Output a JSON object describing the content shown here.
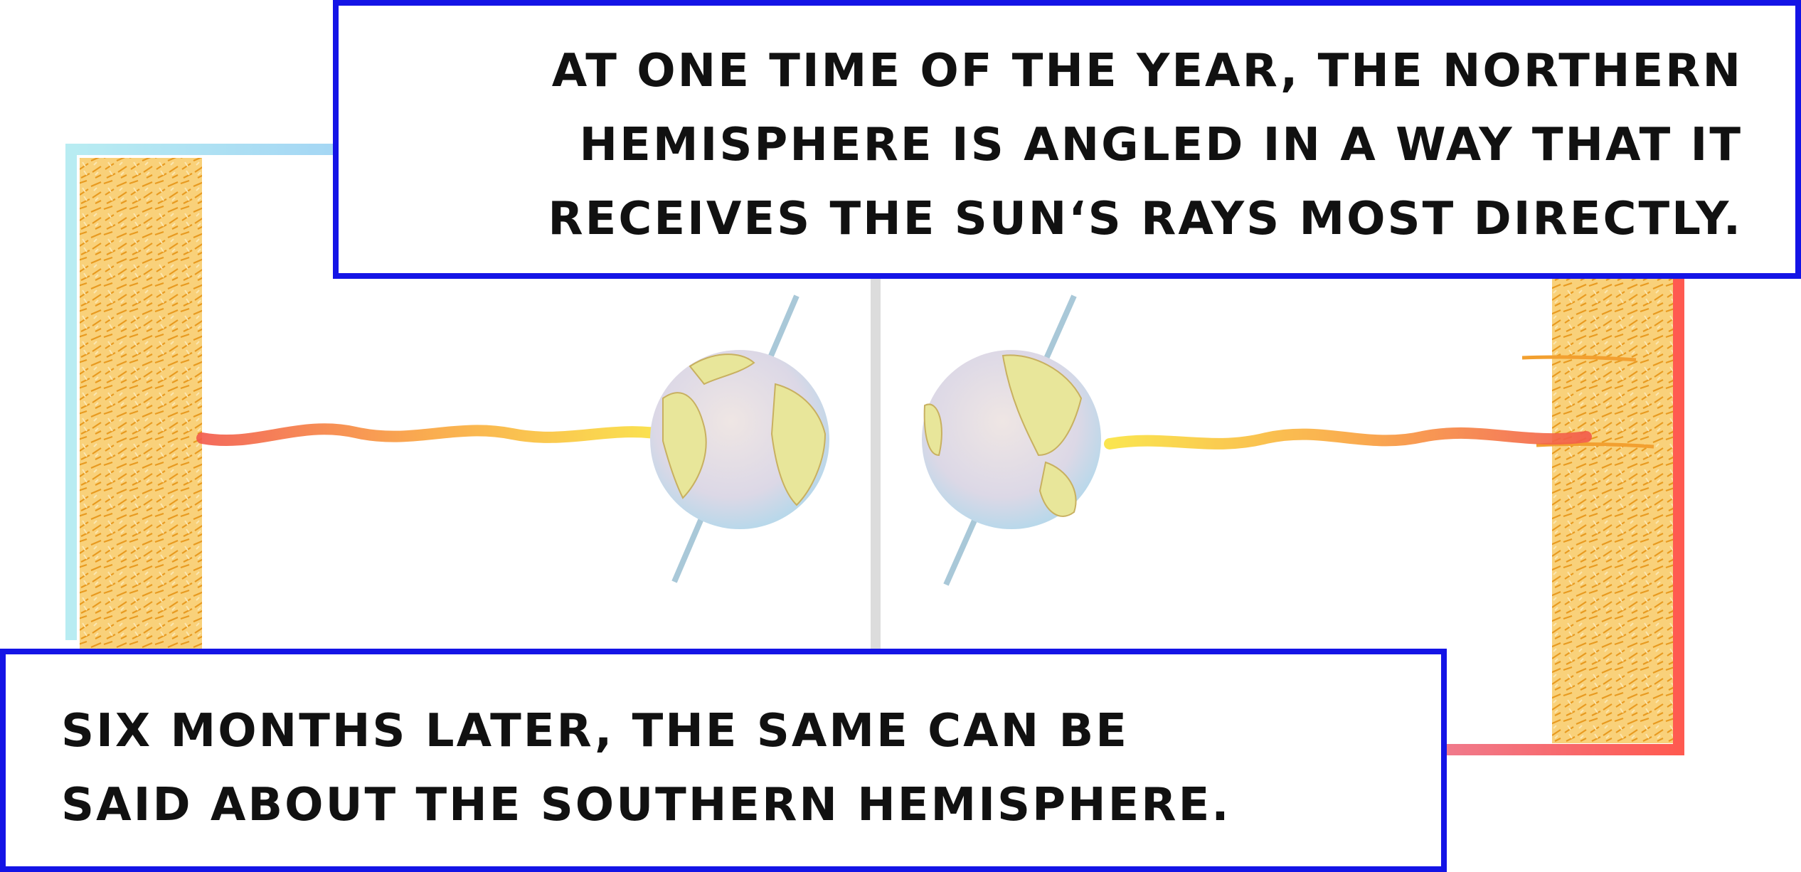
{
  "captions": {
    "top": {
      "lines": [
        "AT ONE TIME OF THE YEAR, THE NORTHERN",
        "HEMISPHERE IS ANGLED IN A WAY THAT IT",
        "RECEIVES THE SUN‘S RAYS MOST DIRECTLY."
      ]
    },
    "bottom": {
      "lines": [
        "SIX MONTHS LATER, THE SAME CAN BE",
        "SAID ABOUT THE SOUTHERN HEMISPHERE."
      ]
    }
  },
  "colors": {
    "caption_border": "#1414e6",
    "left_frame": "#a8e6f0",
    "right_frame": "#f25a5a",
    "sun_texture": "#f2b638",
    "ray_hot": "#f26a4a",
    "ray_warm": "#f9d03c",
    "divider": "#dcdcdc",
    "earth_ocean": "#d8e4ea",
    "earth_land": "#e8e69a",
    "axis": "#a9c8d8"
  },
  "icons": [
    "sun-panel",
    "earth-globe",
    "sun-ray",
    "earth-axis"
  ]
}
